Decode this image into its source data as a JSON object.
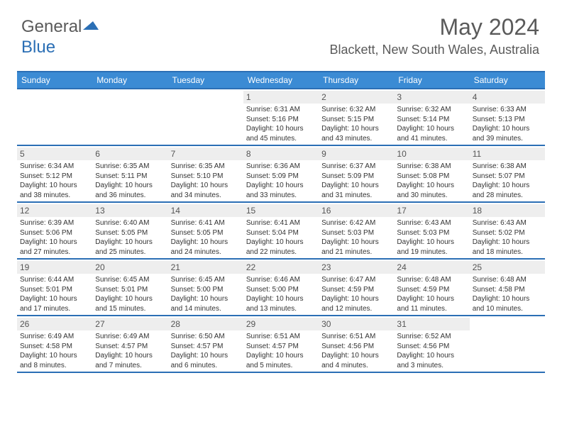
{
  "logo": {
    "text1": "General",
    "text2": "Blue"
  },
  "title": "May 2024",
  "location": "Blackett, New South Wales, Australia",
  "headerColor": "#3b8bd4",
  "borderColor": "#2b6fb5",
  "dayNumBg": "#eeeeee",
  "weekdays": [
    "Sunday",
    "Monday",
    "Tuesday",
    "Wednesday",
    "Thursday",
    "Friday",
    "Saturday"
  ],
  "weeks": [
    [
      {
        "n": "",
        "sr": "",
        "ss": "",
        "dl": ""
      },
      {
        "n": "",
        "sr": "",
        "ss": "",
        "dl": ""
      },
      {
        "n": "",
        "sr": "",
        "ss": "",
        "dl": ""
      },
      {
        "n": "1",
        "sr": "Sunrise: 6:31 AM",
        "ss": "Sunset: 5:16 PM",
        "dl": "Daylight: 10 hours and 45 minutes."
      },
      {
        "n": "2",
        "sr": "Sunrise: 6:32 AM",
        "ss": "Sunset: 5:15 PM",
        "dl": "Daylight: 10 hours and 43 minutes."
      },
      {
        "n": "3",
        "sr": "Sunrise: 6:32 AM",
        "ss": "Sunset: 5:14 PM",
        "dl": "Daylight: 10 hours and 41 minutes."
      },
      {
        "n": "4",
        "sr": "Sunrise: 6:33 AM",
        "ss": "Sunset: 5:13 PM",
        "dl": "Daylight: 10 hours and 39 minutes."
      }
    ],
    [
      {
        "n": "5",
        "sr": "Sunrise: 6:34 AM",
        "ss": "Sunset: 5:12 PM",
        "dl": "Daylight: 10 hours and 38 minutes."
      },
      {
        "n": "6",
        "sr": "Sunrise: 6:35 AM",
        "ss": "Sunset: 5:11 PM",
        "dl": "Daylight: 10 hours and 36 minutes."
      },
      {
        "n": "7",
        "sr": "Sunrise: 6:35 AM",
        "ss": "Sunset: 5:10 PM",
        "dl": "Daylight: 10 hours and 34 minutes."
      },
      {
        "n": "8",
        "sr": "Sunrise: 6:36 AM",
        "ss": "Sunset: 5:09 PM",
        "dl": "Daylight: 10 hours and 33 minutes."
      },
      {
        "n": "9",
        "sr": "Sunrise: 6:37 AM",
        "ss": "Sunset: 5:09 PM",
        "dl": "Daylight: 10 hours and 31 minutes."
      },
      {
        "n": "10",
        "sr": "Sunrise: 6:38 AM",
        "ss": "Sunset: 5:08 PM",
        "dl": "Daylight: 10 hours and 30 minutes."
      },
      {
        "n": "11",
        "sr": "Sunrise: 6:38 AM",
        "ss": "Sunset: 5:07 PM",
        "dl": "Daylight: 10 hours and 28 minutes."
      }
    ],
    [
      {
        "n": "12",
        "sr": "Sunrise: 6:39 AM",
        "ss": "Sunset: 5:06 PM",
        "dl": "Daylight: 10 hours and 27 minutes."
      },
      {
        "n": "13",
        "sr": "Sunrise: 6:40 AM",
        "ss": "Sunset: 5:05 PM",
        "dl": "Daylight: 10 hours and 25 minutes."
      },
      {
        "n": "14",
        "sr": "Sunrise: 6:41 AM",
        "ss": "Sunset: 5:05 PM",
        "dl": "Daylight: 10 hours and 24 minutes."
      },
      {
        "n": "15",
        "sr": "Sunrise: 6:41 AM",
        "ss": "Sunset: 5:04 PM",
        "dl": "Daylight: 10 hours and 22 minutes."
      },
      {
        "n": "16",
        "sr": "Sunrise: 6:42 AM",
        "ss": "Sunset: 5:03 PM",
        "dl": "Daylight: 10 hours and 21 minutes."
      },
      {
        "n": "17",
        "sr": "Sunrise: 6:43 AM",
        "ss": "Sunset: 5:03 PM",
        "dl": "Daylight: 10 hours and 19 minutes."
      },
      {
        "n": "18",
        "sr": "Sunrise: 6:43 AM",
        "ss": "Sunset: 5:02 PM",
        "dl": "Daylight: 10 hours and 18 minutes."
      }
    ],
    [
      {
        "n": "19",
        "sr": "Sunrise: 6:44 AM",
        "ss": "Sunset: 5:01 PM",
        "dl": "Daylight: 10 hours and 17 minutes."
      },
      {
        "n": "20",
        "sr": "Sunrise: 6:45 AM",
        "ss": "Sunset: 5:01 PM",
        "dl": "Daylight: 10 hours and 15 minutes."
      },
      {
        "n": "21",
        "sr": "Sunrise: 6:45 AM",
        "ss": "Sunset: 5:00 PM",
        "dl": "Daylight: 10 hours and 14 minutes."
      },
      {
        "n": "22",
        "sr": "Sunrise: 6:46 AM",
        "ss": "Sunset: 5:00 PM",
        "dl": "Daylight: 10 hours and 13 minutes."
      },
      {
        "n": "23",
        "sr": "Sunrise: 6:47 AM",
        "ss": "Sunset: 4:59 PM",
        "dl": "Daylight: 10 hours and 12 minutes."
      },
      {
        "n": "24",
        "sr": "Sunrise: 6:48 AM",
        "ss": "Sunset: 4:59 PM",
        "dl": "Daylight: 10 hours and 11 minutes."
      },
      {
        "n": "25",
        "sr": "Sunrise: 6:48 AM",
        "ss": "Sunset: 4:58 PM",
        "dl": "Daylight: 10 hours and 10 minutes."
      }
    ],
    [
      {
        "n": "26",
        "sr": "Sunrise: 6:49 AM",
        "ss": "Sunset: 4:58 PM",
        "dl": "Daylight: 10 hours and 8 minutes."
      },
      {
        "n": "27",
        "sr": "Sunrise: 6:49 AM",
        "ss": "Sunset: 4:57 PM",
        "dl": "Daylight: 10 hours and 7 minutes."
      },
      {
        "n": "28",
        "sr": "Sunrise: 6:50 AM",
        "ss": "Sunset: 4:57 PM",
        "dl": "Daylight: 10 hours and 6 minutes."
      },
      {
        "n": "29",
        "sr": "Sunrise: 6:51 AM",
        "ss": "Sunset: 4:57 PM",
        "dl": "Daylight: 10 hours and 5 minutes."
      },
      {
        "n": "30",
        "sr": "Sunrise: 6:51 AM",
        "ss": "Sunset: 4:56 PM",
        "dl": "Daylight: 10 hours and 4 minutes."
      },
      {
        "n": "31",
        "sr": "Sunrise: 6:52 AM",
        "ss": "Sunset: 4:56 PM",
        "dl": "Daylight: 10 hours and 3 minutes."
      },
      {
        "n": "",
        "sr": "",
        "ss": "",
        "dl": ""
      }
    ]
  ]
}
